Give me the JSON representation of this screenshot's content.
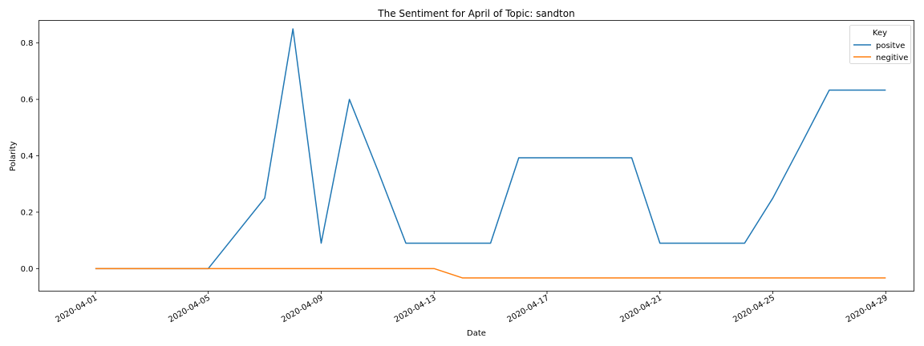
{
  "chart_data": {
    "type": "line",
    "title": "The Sentiment for April of Topic: sandton",
    "xlabel": "Date",
    "ylabel": "Polarity",
    "x": [
      "2020-04-01",
      "2020-04-02",
      "2020-04-03",
      "2020-04-04",
      "2020-04-05",
      "2020-04-06",
      "2020-04-07",
      "2020-04-08",
      "2020-04-09",
      "2020-04-10",
      "2020-04-11",
      "2020-04-12",
      "2020-04-13",
      "2020-04-14",
      "2020-04-15",
      "2020-04-16",
      "2020-04-17",
      "2020-04-18",
      "2020-04-19",
      "2020-04-20",
      "2020-04-21",
      "2020-04-22",
      "2020-04-23",
      "2020-04-24",
      "2020-04-25",
      "2020-04-26",
      "2020-04-27",
      "2020-04-28",
      "2020-04-29"
    ],
    "x_ticks": [
      "2020-04-01",
      "2020-04-05",
      "2020-04-09",
      "2020-04-13",
      "2020-04-17",
      "2020-04-21",
      "2020-04-25",
      "2020-04-29"
    ],
    "y_ticks": [
      "0.0",
      "0.2",
      "0.4",
      "0.6",
      "0.8"
    ],
    "ylim": [
      -0.08,
      0.88
    ],
    "xlim": [
      "2020-03-30",
      "2020-04-30"
    ],
    "series": [
      {
        "name": "positve",
        "color": "#1f77b4",
        "values": [
          0,
          0,
          0,
          0,
          0,
          0.125,
          0.25,
          0.85,
          0.09,
          0.6,
          0.35,
          0.09,
          0.09,
          0.09,
          0.09,
          0.393,
          0.393,
          0.393,
          0.393,
          0.393,
          0.09,
          0.09,
          0.09,
          0.09,
          0.25,
          0.44,
          0.633,
          0.633,
          0.633
        ]
      },
      {
        "name": "negitive",
        "color": "#ff7f0e",
        "values": [
          0,
          0,
          0,
          0,
          0,
          0,
          0,
          0,
          0,
          0,
          0,
          0,
          0,
          -0.033,
          -0.033,
          -0.033,
          -0.033,
          -0.033,
          -0.033,
          -0.033,
          -0.033,
          -0.033,
          -0.033,
          -0.033,
          -0.033,
          -0.033,
          -0.033,
          -0.033,
          -0.033
        ]
      }
    ],
    "legend": {
      "title": "Key",
      "placement": "top-right"
    },
    "grid": false
  }
}
